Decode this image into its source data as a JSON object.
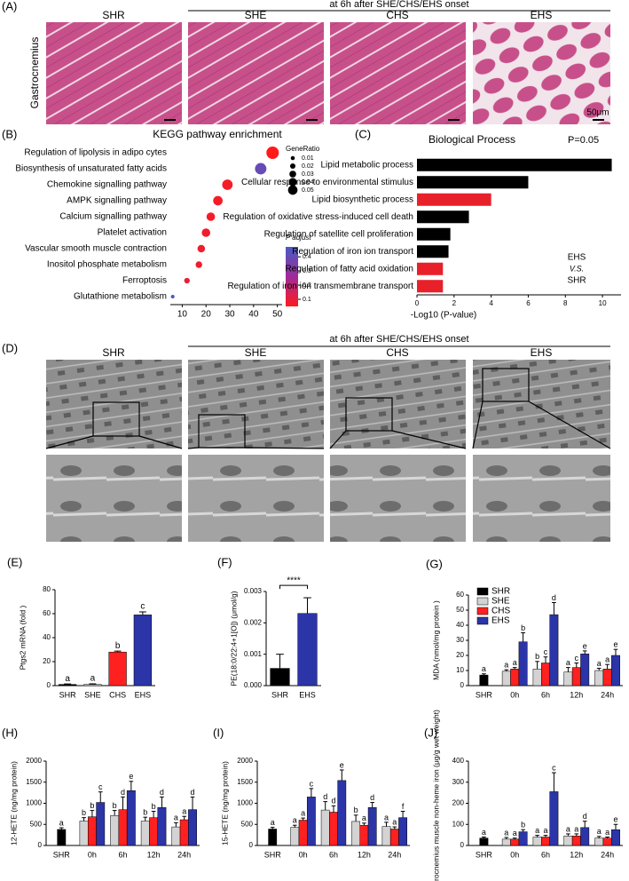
{
  "histology": {
    "label": "(A)",
    "header": "at 6h after SHE/CHS/EHS onset",
    "groups": [
      "SHR",
      "SHE",
      "CHS",
      "EHS"
    ],
    "tissue": "Gastrocnemius",
    "scale": "50μm"
  },
  "tem": {
    "label": "(D)",
    "header": "at 6h after SHE/CHS/EHS onset",
    "groups": [
      "SHR",
      "SHE",
      "CHS",
      "EHS"
    ]
  },
  "labels": {
    "B": "(B)",
    "C": "(C)",
    "E": "(E)",
    "F": "(F)",
    "G": "(G)",
    "H": "(H)",
    "I": "(I)",
    "J": "(J)"
  },
  "chart_data": [
    {
      "type": "dot",
      "title": "KEGG pathway enrichment",
      "categories": [
        "Regulation of lipolysis in adipo cytes",
        "Biosynthesis of unsaturated fatty acids",
        "Chemokine signalling pathway",
        "AMPK signalling pathway",
        "Calcium signalling pathway",
        "Platelet activation",
        "Vascular smooth muscle contraction",
        "Inositol phosphate metabolism",
        "Ferroptosis",
        "Glutathione metabolism"
      ],
      "label_colors": [
        "#000000",
        "#000000",
        "#000000",
        "#000000",
        "#000000",
        "#000000",
        "#000000",
        "#000000",
        "#e8202a",
        "#000000"
      ],
      "x": [
        48,
        43,
        29,
        25,
        22,
        20,
        18,
        17,
        12,
        6
      ],
      "gene_ratio": [
        0.05,
        0.045,
        0.04,
        0.035,
        0.03,
        0.03,
        0.025,
        0.02,
        0.015,
        0.005
      ],
      "p_adjust": [
        0.05,
        0.4,
        0.07,
        0.07,
        0.07,
        0.08,
        0.08,
        0.08,
        0.1,
        0.45
      ],
      "xlim": [
        5,
        52
      ],
      "xticks": [
        10,
        20,
        30,
        40,
        50
      ],
      "size_title": "GeneRatio",
      "size_ticks": [
        0.01,
        0.02,
        0.03,
        0.04,
        0.05
      ],
      "color_title": "P adjust",
      "clim": [
        0.05,
        0.47
      ],
      "cticks": [
        0.1,
        0.2,
        0.3,
        0.4
      ],
      "cmap": [
        "#ff1a1a",
        "#a02a9a",
        "#4a5bc4"
      ]
    },
    {
      "type": "barh",
      "title": "Biological Process",
      "annotation": "P=0.05",
      "categories": [
        "Lipid metabolic process",
        "Cellular response to environmental stimulus",
        "Lipid biosynthetic process",
        "Regulation of oxidative stress-induced cell death",
        "Regulation of satellite cell proliferation",
        "Regulation of iron ion transport",
        "Regulation of fatty acid oxidation",
        "Regulation of iron ion transmembrane transport"
      ],
      "values": [
        10.5,
        6,
        4,
        2.8,
        1.8,
        1.7,
        1.4,
        1.4
      ],
      "colors": [
        "#000000",
        "#000000",
        "#e8202a",
        "#000000",
        "#000000",
        "#000000",
        "#e8202a",
        "#e8202a"
      ],
      "xlim": [
        0,
        11
      ],
      "xticks": [
        0,
        2,
        4,
        6,
        8,
        10
      ],
      "xlabel": "-Log10 (P-value)",
      "comparison": [
        "EHS",
        "V.S.",
        "SHR"
      ]
    },
    {
      "type": "bar",
      "ylabel": "Ptgs2 mRNA (fold )",
      "categories": [
        "SHR",
        "SHE",
        "CHS",
        "EHS"
      ],
      "values": [
        1,
        1,
        28,
        59
      ],
      "errors": [
        0.4,
        0.5,
        0.8,
        2.5
      ],
      "letters": [
        "a",
        "a",
        "b",
        "c"
      ],
      "colors": [
        "#000000",
        "#d3d3d3",
        "#ff2020",
        "#2b35a8"
      ],
      "ylim": [
        0,
        80
      ],
      "yticks": [
        0,
        20,
        40,
        60,
        80
      ]
    },
    {
      "type": "bar",
      "ylabel": "PE(18:0/22:4+1[O]) (μmol/g)",
      "categories": [
        "SHR",
        "EHS"
      ],
      "values": [
        0.00055,
        0.0023
      ],
      "errors": [
        0.00045,
        0.0005
      ],
      "colors": [
        "#000000",
        "#2b35a8"
      ],
      "significance": "****",
      "ylim": [
        0,
        0.003
      ],
      "yticks": [
        {
          "value": 0,
          "label": "0.000"
        },
        {
          "value": 0.001,
          "label": "0.001"
        },
        {
          "value": 0.002,
          "label": "0.002"
        },
        {
          "value": 0.003,
          "label": "0.003"
        }
      ]
    },
    {
      "type": "grouped_bar",
      "ylabel": "MDA (nmol/mg protein )",
      "categories": [
        "SHR",
        "0h",
        "6h",
        "12h",
        "24h"
      ],
      "legend": "upper left",
      "series": [
        {
          "name": "SHR",
          "color": "#000000",
          "values": [
            7,
            null,
            null,
            null,
            null
          ],
          "errors": [
            0.8,
            null,
            null,
            null,
            null
          ],
          "letters": [
            "a",
            null,
            null,
            null,
            null
          ]
        },
        {
          "name": "SHE",
          "color": "#d3d3d3",
          "values": [
            null,
            9.5,
            11,
            9,
            10
          ],
          "errors": [
            null,
            1,
            5,
            3,
            1.5
          ],
          "letters": [
            null,
            "a",
            "b",
            "a",
            "a"
          ]
        },
        {
          "name": "CHS",
          "color": "#ff2020",
          "values": [
            null,
            11,
            15,
            12,
            11
          ],
          "errors": [
            null,
            1,
            4,
            3,
            3
          ],
          "letters": [
            null,
            "a",
            "c",
            "c",
            "a"
          ]
        },
        {
          "name": "EHS",
          "color": "#2b35a8",
          "values": [
            null,
            29,
            47,
            21,
            20
          ],
          "errors": [
            null,
            6,
            8,
            2,
            4
          ],
          "letters": [
            null,
            "b",
            "d",
            "e",
            "e"
          ]
        }
      ],
      "ylim": [
        0,
        60
      ],
      "yticks": [
        0,
        10,
        20,
        30,
        40,
        50,
        60
      ]
    },
    {
      "type": "grouped_bar",
      "ylabel": "12-HETE (ng/mg protein)",
      "categories": [
        "SHR",
        "0h",
        "6h",
        "12h",
        "24h"
      ],
      "series": [
        {
          "name": "SHR",
          "color": "#000000",
          "values": [
            380,
            null,
            null,
            null,
            null
          ],
          "errors": [
            40,
            null,
            null,
            null,
            null
          ],
          "letters": [
            "a",
            null,
            null,
            null,
            null
          ]
        },
        {
          "name": "SHE",
          "color": "#d3d3d3",
          "values": [
            null,
            580,
            710,
            580,
            440
          ],
          "errors": [
            null,
            80,
            120,
            90,
            100
          ],
          "letters": [
            null,
            "b",
            "b",
            "b",
            "a"
          ]
        },
        {
          "name": "CHS",
          "color": "#ff2020",
          "values": [
            null,
            680,
            850,
            660,
            610
          ],
          "errors": [
            null,
            150,
            300,
            150,
            80
          ],
          "letters": [
            null,
            "b",
            "d",
            "b",
            "a"
          ]
        },
        {
          "name": "EHS",
          "color": "#2b35a8",
          "values": [
            null,
            1020,
            1300,
            900,
            850
          ],
          "errors": [
            null,
            250,
            220,
            250,
            300
          ],
          "letters": [
            null,
            "c",
            "e",
            "d",
            "d"
          ]
        }
      ],
      "ylim": [
        0,
        2000
      ],
      "yticks": [
        0,
        500,
        1000,
        1500,
        2000
      ]
    },
    {
      "type": "grouped_bar",
      "ylabel": "15-HETE (ng/mg protein)",
      "categories": [
        "SHR",
        "0h",
        "6h",
        "12h",
        "24h"
      ],
      "series": [
        {
          "name": "SHR",
          "color": "#000000",
          "values": [
            390,
            null,
            null,
            null,
            null
          ],
          "errors": [
            40,
            null,
            null,
            null,
            null
          ],
          "letters": [
            "a",
            null,
            null,
            null,
            null
          ]
        },
        {
          "name": "SHE",
          "color": "#d3d3d3",
          "values": [
            null,
            430,
            840,
            570,
            450
          ],
          "errors": [
            null,
            50,
            200,
            150,
            100
          ],
          "letters": [
            null,
            "a",
            "d",
            "b",
            "a"
          ]
        },
        {
          "name": "CHS",
          "color": "#ff2020",
          "values": [
            null,
            600,
            790,
            480,
            390
          ],
          "errors": [
            null,
            50,
            150,
            50,
            50
          ],
          "letters": [
            null,
            "a",
            "d",
            "a",
            "a"
          ]
        },
        {
          "name": "EHS",
          "color": "#2b35a8",
          "values": [
            null,
            1150,
            1540,
            900,
            660
          ],
          "errors": [
            null,
            200,
            250,
            120,
            150
          ],
          "letters": [
            null,
            "c",
            "e",
            "d",
            "f"
          ]
        }
      ],
      "ylim": [
        0,
        2000
      ],
      "yticks": [
        0,
        500,
        1000,
        1500,
        2000
      ]
    },
    {
      "type": "grouped_bar",
      "ylabel": "Gastrocnemius muscle non-heme iron (μg/g wet weight)",
      "categories": [
        "SHR",
        "0h",
        "6h",
        "12h",
        "24h"
      ],
      "series": [
        {
          "name": "SHR",
          "color": "#000000",
          "values": [
            35,
            null,
            null,
            null,
            null
          ],
          "errors": [
            5,
            null,
            null,
            null,
            null
          ],
          "letters": [
            "a",
            null,
            null,
            null,
            null
          ]
        },
        {
          "name": "SHE",
          "color": "#d3d3d3",
          "values": [
            null,
            30,
            40,
            45,
            35
          ],
          "errors": [
            null,
            8,
            8,
            10,
            8
          ],
          "letters": [
            null,
            "a",
            "a",
            "a",
            "a"
          ]
        },
        {
          "name": "CHS",
          "color": "#ff2020",
          "values": [
            null,
            30,
            40,
            45,
            35
          ],
          "errors": [
            null,
            5,
            8,
            10,
            5
          ],
          "letters": [
            null,
            "a",
            "a",
            "a",
            "a"
          ]
        },
        {
          "name": "EHS",
          "color": "#2b35a8",
          "values": [
            null,
            65,
            255,
            85,
            75
          ],
          "errors": [
            null,
            10,
            90,
            30,
            25
          ],
          "letters": [
            null,
            "b",
            "c",
            "d",
            "e"
          ]
        }
      ],
      "ylim": [
        0,
        400
      ],
      "yticks": [
        0,
        100,
        200,
        300,
        400
      ]
    }
  ]
}
